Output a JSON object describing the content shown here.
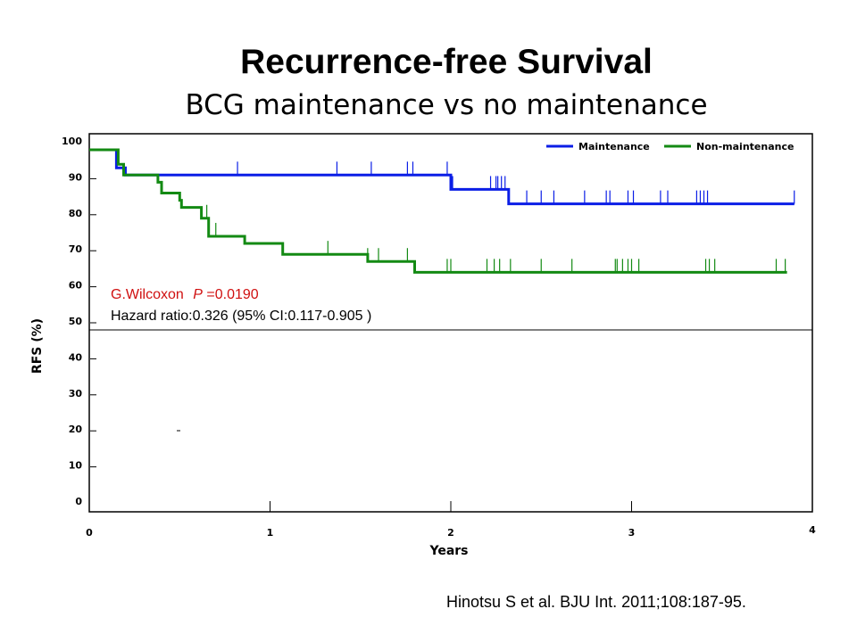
{
  "title": "Recurrence-free Survival",
  "subtitle": "BCG maintenance vs no maintenance",
  "citation": "Hinotsu S et al. BJU Int. 2011;108:187-95.",
  "chart_data": {
    "type": "line",
    "title": "Recurrence-free Survival",
    "subtitle": "BCG maintenance vs no maintenance",
    "xlabel": "Years",
    "ylabel": "RFS (%)",
    "xlim": [
      0,
      4
    ],
    "ylim": [
      0,
      100
    ],
    "x_ticks": [
      "0",
      "1",
      "2",
      "3",
      "4"
    ],
    "y_ticks": [
      "0",
      "10",
      "20",
      "30",
      "40",
      "50",
      "60",
      "70",
      "80",
      "90",
      "100"
    ],
    "reference_line_y": 50,
    "legend_position": "top-right",
    "series": [
      {
        "name": "Maintenance",
        "color": "#0b1ee6",
        "step_x": [
          0,
          0.15,
          0.15,
          0.18,
          0.18,
          0.2,
          0.2,
          2.0,
          2.0,
          2.32,
          2.32,
          3.9
        ],
        "step_y": [
          100,
          100,
          95,
          95,
          95,
          95,
          93,
          93,
          89,
          89,
          85,
          85
        ],
        "censor_times": [
          0.82,
          1.37,
          1.56,
          1.76,
          1.79,
          1.98,
          2.01,
          2.22,
          2.25,
          2.26,
          2.28,
          2.3,
          2.42,
          2.5,
          2.57,
          2.74,
          2.86,
          2.88,
          2.98,
          3.01,
          3.16,
          3.2,
          3.36,
          3.38,
          3.4,
          3.42,
          3.9
        ]
      },
      {
        "name": "Non-maintenance",
        "color": "#138a13",
        "step_x": [
          0,
          0.16,
          0.16,
          0.19,
          0.19,
          0.38,
          0.38,
          0.4,
          0.4,
          0.5,
          0.5,
          0.51,
          0.51,
          0.62,
          0.62,
          0.66,
          0.66,
          0.86,
          0.86,
          1.07,
          1.07,
          1.54,
          1.54,
          1.8,
          1.8,
          3.86
        ],
        "step_y": [
          100,
          100,
          96,
          96,
          93,
          93,
          91,
          91,
          88,
          88,
          86,
          86,
          84,
          84,
          81,
          81,
          76,
          76,
          74,
          74,
          71,
          71,
          69,
          69,
          66,
          66
        ],
        "censor_times": [
          0.65,
          0.7,
          1.32,
          1.54,
          1.6,
          1.76,
          1.98,
          2.0,
          2.2,
          2.24,
          2.27,
          2.33,
          2.5,
          2.67,
          2.91,
          2.92,
          2.95,
          2.98,
          3.0,
          3.04,
          3.41,
          3.43,
          3.46,
          3.8,
          3.85
        ]
      }
    ],
    "annotations": {
      "test_label": "G.Wilcoxon",
      "p_label": "P",
      "p_value": "=0.0190",
      "hazard": "Hazard  ratio:0.326 (95% CI:0.117-0.905",
      "hazard_close": ")"
    }
  }
}
